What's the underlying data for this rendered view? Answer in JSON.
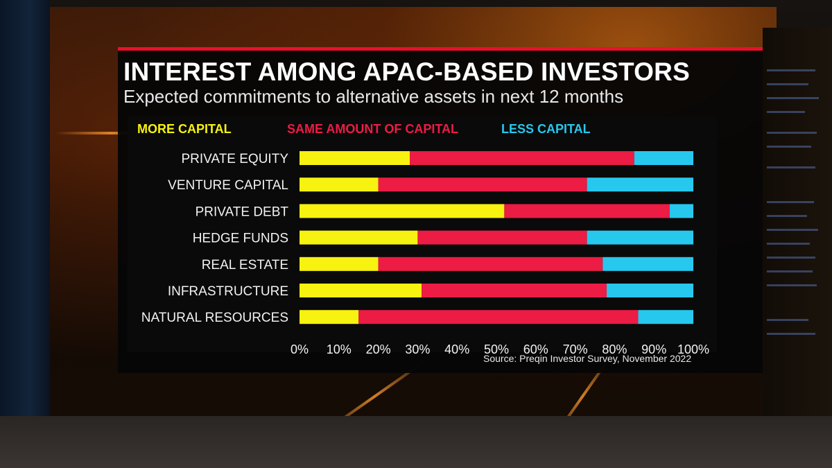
{
  "title": "INTEREST AMONG APAC-BASED INVESTORS",
  "subtitle": "Expected commitments to alternative assets in next 12 months",
  "source": "Source: Preqin Investor Survey, November 2022",
  "legend": [
    {
      "label": "MORE CAPITAL",
      "color": "#f7f20f"
    },
    {
      "label": "SAME AMOUNT OF CAPITAL",
      "color": "#ec1c45"
    },
    {
      "label": "LESS CAPITAL",
      "color": "#27c8ee"
    }
  ],
  "chart_data": {
    "type": "bar",
    "orientation": "horizontal",
    "stacked": true,
    "categories": [
      "PRIVATE EQUITY",
      "VENTURE CAPITAL",
      "PRIVATE DEBT",
      "HEDGE FUNDS",
      "REAL ESTATE",
      "INFRASTRUCTURE",
      "NATURAL RESOURCES"
    ],
    "series": [
      {
        "name": "MORE CAPITAL",
        "color": "#f7f20f",
        "values": [
          28,
          20,
          52,
          30,
          20,
          31,
          15
        ]
      },
      {
        "name": "SAME AMOUNT OF CAPITAL",
        "color": "#ec1c45",
        "values": [
          57,
          53,
          42,
          43,
          57,
          47,
          71
        ]
      },
      {
        "name": "LESS CAPITAL",
        "color": "#27c8ee",
        "values": [
          15,
          27,
          6,
          27,
          23,
          22,
          14
        ]
      }
    ],
    "xticks": [
      "0%",
      "10%",
      "20%",
      "30%",
      "40%",
      "50%",
      "60%",
      "70%",
      "80%",
      "90%",
      "100%"
    ],
    "xlim": [
      0,
      100
    ],
    "grid": false,
    "legend_position": "top"
  }
}
